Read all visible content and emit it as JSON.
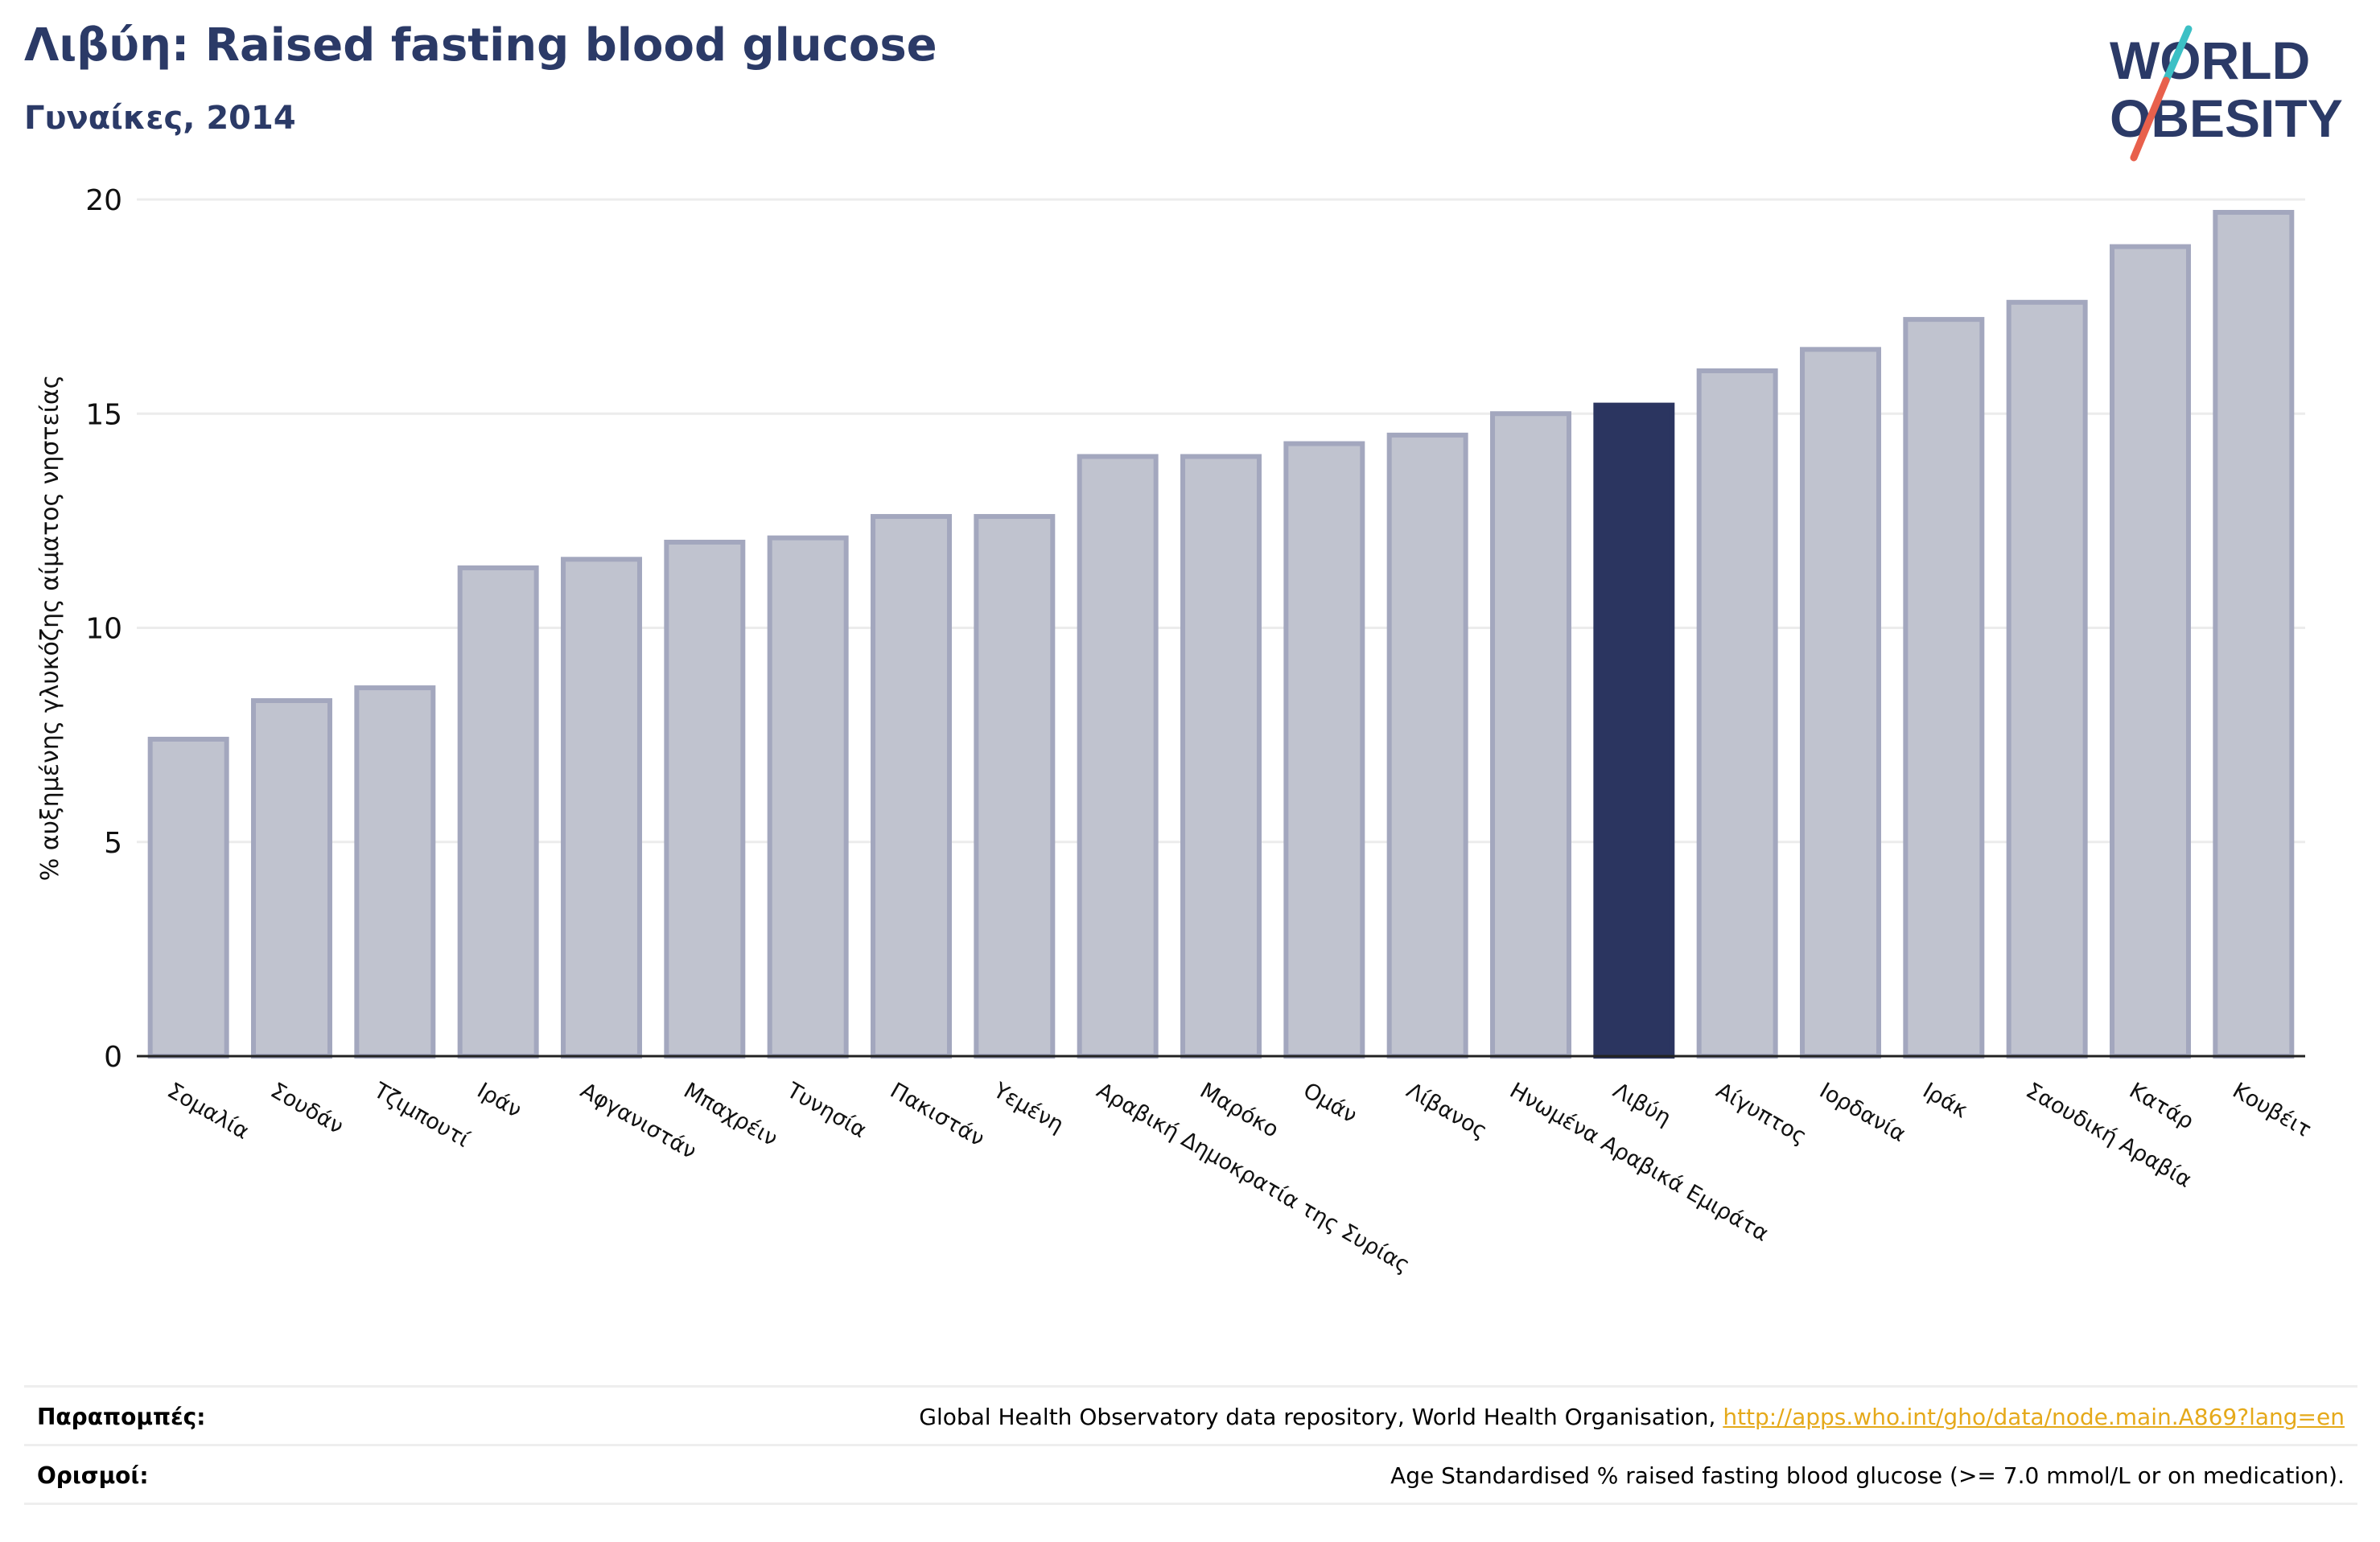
{
  "header": {
    "title": "Λιβύη: Raised fasting blood glucose",
    "subtitle": "Γυναίκες, 2014"
  },
  "logo": {
    "line1": "WORLD",
    "line2": "OBESITY",
    "slash_colors": [
      "#3cc0c5",
      "#e8604c"
    ]
  },
  "colors": {
    "bar_default": "#c0c3cf",
    "bar_border": "#a3a7be",
    "bar_highlight": "#2b3560",
    "title": "#2b3a67",
    "link": "#e5a91a"
  },
  "chart_data": {
    "type": "bar",
    "title": "Λιβύη: Raised fasting blood glucose",
    "subtitle": "Γυναίκες, 2014",
    "xlabel": "",
    "ylabel": "% αυξημένης γλυκόζης αίματος νηστείας",
    "ylim": [
      0,
      20
    ],
    "yticks": [
      0,
      5,
      10,
      15,
      20
    ],
    "grid": true,
    "highlight": "Λιβύη",
    "categories": [
      "Σομαλία",
      "Σουδάν",
      "Τζιμπουτί",
      "Ιράν",
      "Αφγανιστάν",
      "Μπαχρέιν",
      "Τυνησία",
      "Πακιστάν",
      "Υεμένη",
      "Αραβική Δημοκρατία της Συρίας",
      "Μαρόκο",
      "Ομάν",
      "Λίβανος",
      "Ηνωμένα Αραβικά Εμιράτα",
      "Λιβύη",
      "Αίγυπτος",
      "Ιορδανία",
      "Ιράκ",
      "Σαουδική Αραβία",
      "Κατάρ",
      "Κουβέιτ"
    ],
    "values": [
      7.4,
      8.3,
      8.6,
      11.4,
      11.6,
      12.0,
      12.1,
      12.6,
      12.6,
      14.0,
      14.0,
      14.3,
      14.5,
      15.0,
      15.2,
      16.0,
      16.5,
      17.2,
      17.6,
      18.9,
      19.7
    ]
  },
  "footer": {
    "references_label": "Παραπομπές:",
    "references_text": "Global Health Observatory data repository, World Health Organisation, ",
    "references_link": "http://apps.who.int/gho/data/node.main.A869?lang=en",
    "definitions_label": "Ορισμοί:",
    "definitions_text": "Age Standardised % raised fasting blood glucose (>= 7.0 mmol/L or on medication)."
  }
}
